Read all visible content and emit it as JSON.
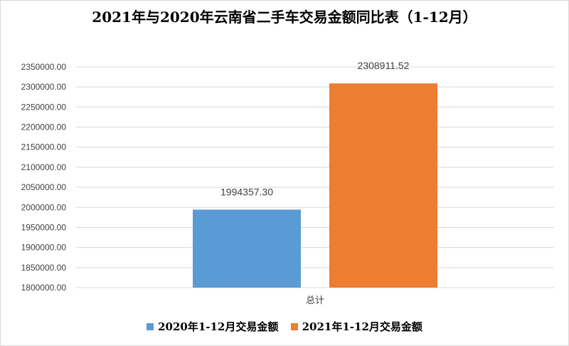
{
  "chart_data": {
    "type": "bar",
    "title": "2021年与2020年云南省二手车交易金额同比表（1-12月）",
    "categories": [
      "总计"
    ],
    "series": [
      {
        "name": "2020年1-12月交易金额",
        "values": [
          1994357.3
        ],
        "labels": [
          "1994357.30"
        ],
        "color": "#5b9bd5"
      },
      {
        "name": "2021年1-12月交易金额",
        "values": [
          2308911.52
        ],
        "labels": [
          "2308911.52"
        ],
        "color": "#ed7d31"
      }
    ],
    "ylim": [
      1800000,
      2350000
    ],
    "yticks": [
      "1800000.00",
      "1850000.00",
      "1900000.00",
      "1950000.00",
      "2000000.00",
      "2050000.00",
      "2100000.00",
      "2150000.00",
      "2200000.00",
      "2250000.00",
      "2300000.00",
      "2350000.00"
    ],
    "grid": true,
    "legend_position": "bottom"
  }
}
